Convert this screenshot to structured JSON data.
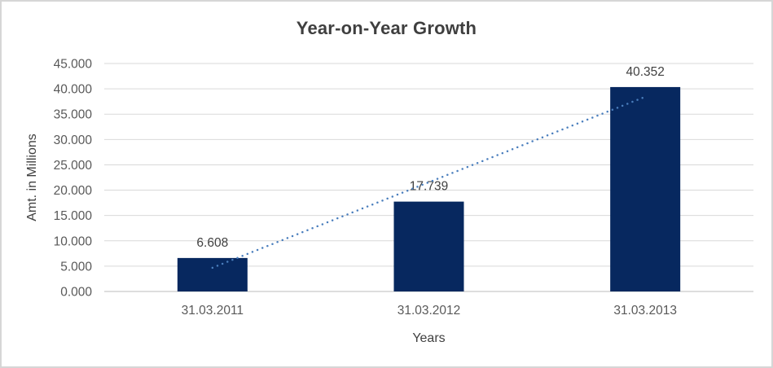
{
  "chart_data": {
    "type": "bar",
    "title": "Year-on-Year Growth",
    "categories": [
      "31.03.2011",
      "31.03.2012",
      "31.03.2013"
    ],
    "series": [
      {
        "name": "Amt. in Millions",
        "values": [
          6.608,
          17.739,
          40.352
        ]
      }
    ],
    "data_labels": [
      "6.608",
      "17.739",
      "40.352"
    ],
    "xlabel": "Years",
    "ylabel": "Amt. in Millions",
    "ylim": [
      0,
      45
    ],
    "ytick_step": 5,
    "ytick_labels": [
      "0.000",
      "5.000",
      "10.000",
      "15.000",
      "20.000",
      "25.000",
      "30.000",
      "35.000",
      "40.000",
      "45.000"
    ],
    "grid": true,
    "legend": "none",
    "trendline": {
      "type": "linear",
      "style": "dotted",
      "start_value": 4.69,
      "end_value": 38.44
    },
    "colors": {
      "bar": "#07285f",
      "trendline": "#4a7ebd",
      "gridline": "#d9d9d9",
      "axis_line": "#c9c9c9",
      "tick_label": "#595959",
      "title": "#3f3f3f",
      "axis_title": "#404040",
      "data_label": "#404040",
      "border": "#d6d6d6",
      "background": "#ffffff"
    }
  }
}
